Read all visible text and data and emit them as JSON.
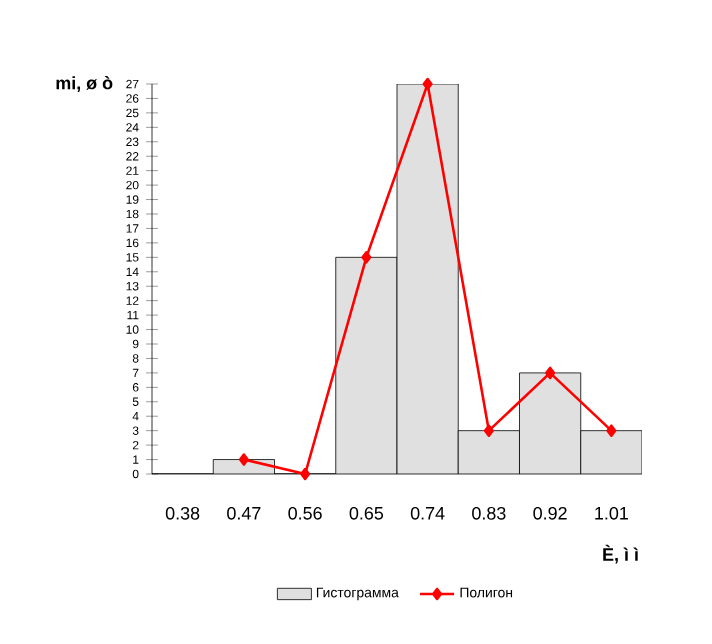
{
  "chart_data": {
    "type": "bar",
    "xlabel": "È, ì ì",
    "ylabel": "mi, ø ò",
    "categories": [
      "0.38",
      "0.47",
      "0.56",
      "0.65",
      "0.74",
      "0.83",
      "0.92",
      "1.01"
    ],
    "series": [
      {
        "name": "Гистограмма",
        "color": "#e0e0e0",
        "values": [
          0,
          1,
          0,
          15,
          27,
          3,
          7,
          3
        ]
      },
      {
        "name": "Полигон",
        "type": "line",
        "color": "#ff0000",
        "values": [
          null,
          1,
          0,
          15,
          27,
          3,
          7,
          3
        ]
      }
    ],
    "ylim": [
      0,
      27
    ],
    "yticks": [
      0,
      1,
      2,
      3,
      4,
      5,
      6,
      7,
      8,
      9,
      10,
      11,
      12,
      13,
      14,
      15,
      16,
      17,
      18,
      19,
      20,
      21,
      22,
      23,
      24,
      25,
      26,
      27
    ],
    "legend": "bottom",
    "marker": "diamond",
    "line_style": "solid"
  }
}
